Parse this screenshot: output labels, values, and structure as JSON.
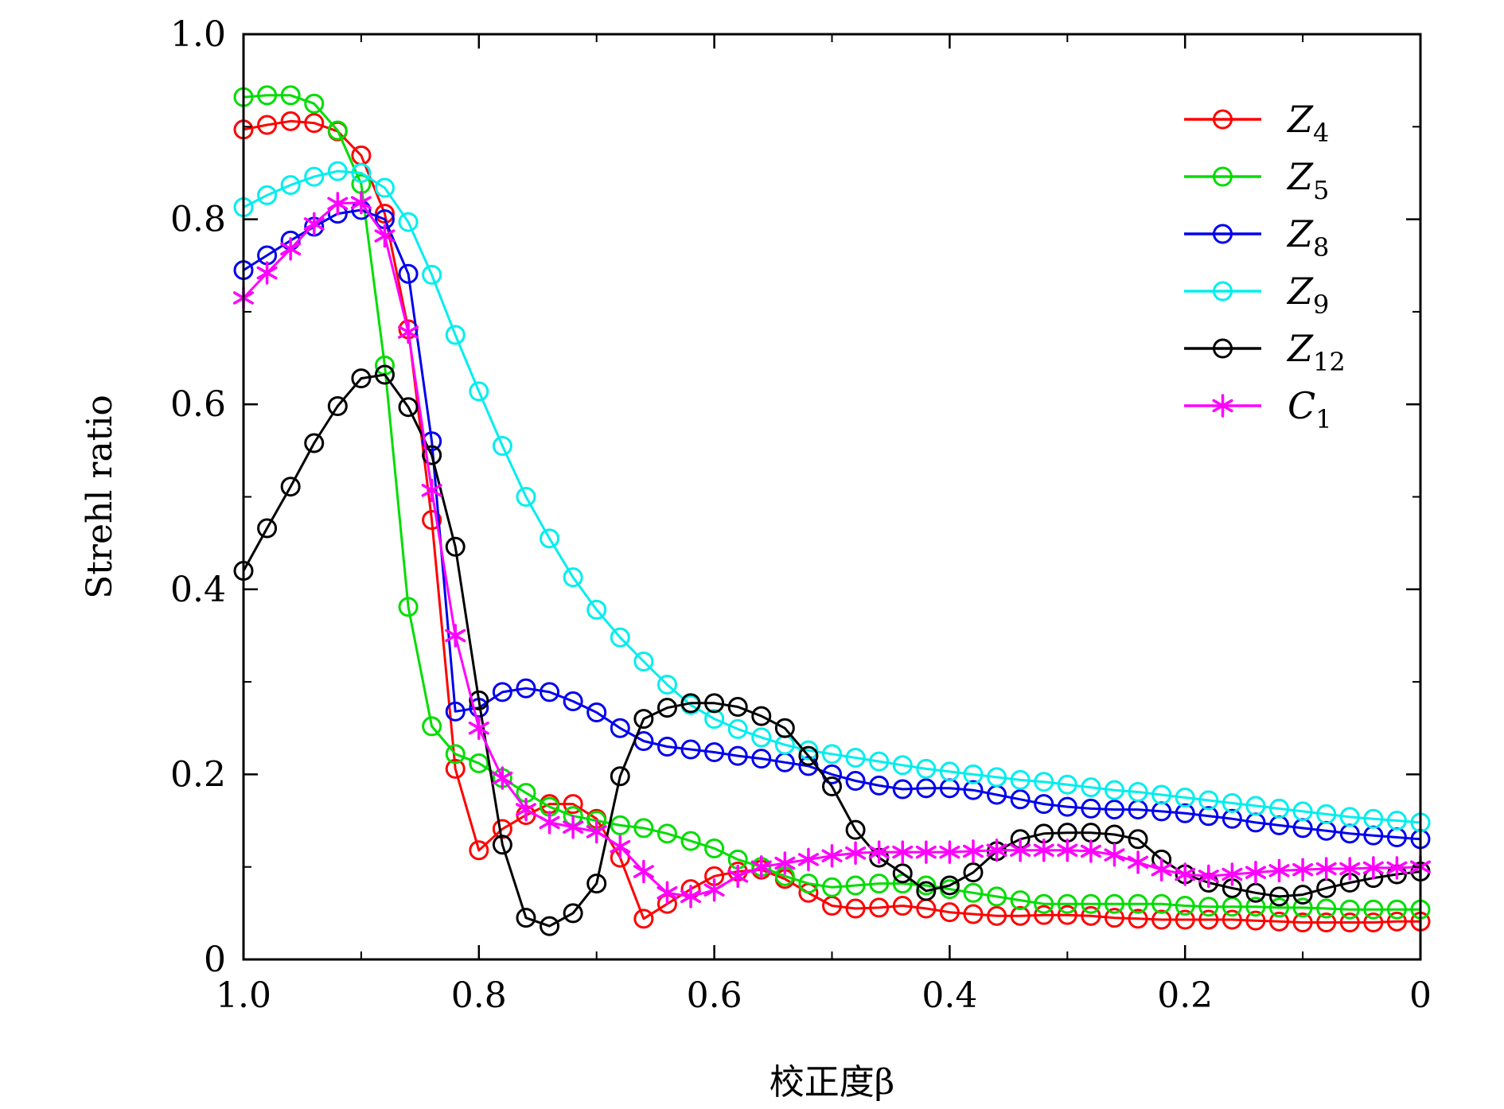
{
  "chart_data": {
    "type": "line",
    "title": "",
    "xlabel": "校正度β",
    "ylabel": "Strehl ratio",
    "xlim": [
      1.0,
      0.0
    ],
    "ylim": [
      0,
      1.0
    ],
    "x_reversed": true,
    "xticks": [
      1.0,
      0.8,
      0.6,
      0.4,
      0.2,
      0
    ],
    "xtick_labels": [
      "1.0",
      "0.8",
      "0.6",
      "0.4",
      "0.2",
      "0"
    ],
    "yticks": [
      0,
      0.2,
      0.4,
      0.6,
      0.8,
      1.0
    ],
    "ytick_labels": [
      "0",
      "0.2",
      "0.4",
      "0.6",
      "0.8",
      "1.0"
    ],
    "grid": false,
    "legend_position": "top-right",
    "x": [
      1.0,
      0.98,
      0.96,
      0.94,
      0.92,
      0.9,
      0.88,
      0.86,
      0.84,
      0.82,
      0.8,
      0.78,
      0.76,
      0.74,
      0.72,
      0.7,
      0.68,
      0.66,
      0.64,
      0.62,
      0.6,
      0.58,
      0.56,
      0.54,
      0.52,
      0.5,
      0.48,
      0.46,
      0.44,
      0.42,
      0.4,
      0.38,
      0.36,
      0.34,
      0.32,
      0.3,
      0.28,
      0.26,
      0.24,
      0.22,
      0.2,
      0.18,
      0.16,
      0.14,
      0.12,
      0.1,
      0.08,
      0.06,
      0.04,
      0.02,
      0.0
    ],
    "series": [
      {
        "name": "Z4",
        "base": "Z",
        "sub": "4",
        "color": "#ff0000",
        "marker": "circle",
        "values": [
          0.897,
          0.902,
          0.906,
          0.904,
          0.895,
          0.869,
          0.806,
          0.681,
          0.475,
          0.206,
          0.118,
          0.141,
          0.156,
          0.168,
          0.168,
          0.152,
          0.11,
          0.044,
          0.06,
          0.076,
          0.09,
          0.095,
          0.097,
          0.087,
          0.072,
          0.058,
          0.055,
          0.056,
          0.058,
          0.055,
          0.051,
          0.049,
          0.047,
          0.047,
          0.048,
          0.048,
          0.047,
          0.045,
          0.044,
          0.043,
          0.043,
          0.043,
          0.043,
          0.042,
          0.041,
          0.04,
          0.04,
          0.04,
          0.04,
          0.041,
          0.041
        ]
      },
      {
        "name": "Z5",
        "base": "Z",
        "sub": "5",
        "color": "#00dd00",
        "marker": "circle",
        "values": [
          0.932,
          0.934,
          0.934,
          0.925,
          0.896,
          0.838,
          0.642,
          0.381,
          0.252,
          0.222,
          0.212,
          0.196,
          0.18,
          0.165,
          0.155,
          0.15,
          0.145,
          0.142,
          0.136,
          0.128,
          0.12,
          0.108,
          0.1,
          0.09,
          0.082,
          0.078,
          0.08,
          0.082,
          0.082,
          0.08,
          0.076,
          0.072,
          0.068,
          0.064,
          0.06,
          0.06,
          0.06,
          0.06,
          0.06,
          0.06,
          0.058,
          0.057,
          0.057,
          0.057,
          0.056,
          0.056,
          0.055,
          0.054,
          0.054,
          0.054,
          0.054
        ]
      },
      {
        "name": "Z8",
        "base": "Z",
        "sub": "8",
        "color": "#0000ee",
        "marker": "circle",
        "values": [
          0.745,
          0.761,
          0.777,
          0.792,
          0.806,
          0.81,
          0.8,
          0.741,
          0.56,
          0.268,
          0.272,
          0.289,
          0.293,
          0.289,
          0.279,
          0.267,
          0.25,
          0.236,
          0.23,
          0.227,
          0.224,
          0.22,
          0.217,
          0.213,
          0.209,
          0.2,
          0.193,
          0.188,
          0.184,
          0.185,
          0.185,
          0.183,
          0.178,
          0.173,
          0.168,
          0.165,
          0.163,
          0.162,
          0.162,
          0.16,
          0.158,
          0.155,
          0.152,
          0.148,
          0.145,
          0.142,
          0.139,
          0.136,
          0.134,
          0.132,
          0.13
        ]
      },
      {
        "name": "Z9",
        "base": "Z",
        "sub": "9",
        "color": "#00eeee",
        "marker": "circle",
        "values": [
          0.813,
          0.826,
          0.837,
          0.846,
          0.852,
          0.85,
          0.834,
          0.797,
          0.74,
          0.675,
          0.614,
          0.555,
          0.5,
          0.455,
          0.413,
          0.378,
          0.348,
          0.322,
          0.297,
          0.275,
          0.26,
          0.249,
          0.24,
          0.232,
          0.226,
          0.222,
          0.218,
          0.214,
          0.21,
          0.206,
          0.203,
          0.2,
          0.197,
          0.194,
          0.192,
          0.189,
          0.186,
          0.183,
          0.181,
          0.178,
          0.175,
          0.172,
          0.169,
          0.166,
          0.163,
          0.16,
          0.157,
          0.154,
          0.152,
          0.15,
          0.148
        ]
      },
      {
        "name": "Z12",
        "base": "Z",
        "sub": "12",
        "color": "#000000",
        "marker": "circle",
        "values": [
          0.42,
          0.466,
          0.511,
          0.558,
          0.598,
          0.628,
          0.632,
          0.597,
          0.545,
          0.446,
          0.28,
          0.124,
          0.045,
          0.036,
          0.05,
          0.082,
          0.198,
          0.26,
          0.272,
          0.277,
          0.277,
          0.273,
          0.263,
          0.25,
          0.22,
          0.187,
          0.14,
          0.11,
          0.093,
          0.074,
          0.08,
          0.094,
          0.117,
          0.13,
          0.136,
          0.137,
          0.137,
          0.135,
          0.13,
          0.108,
          0.092,
          0.083,
          0.077,
          0.072,
          0.068,
          0.07,
          0.077,
          0.083,
          0.088,
          0.092,
          0.095
        ]
      },
      {
        "name": "C1",
        "base": "C",
        "sub": "1",
        "color": "#ff00ff",
        "marker": "asterisk",
        "values": [
          0.715,
          0.742,
          0.768,
          0.795,
          0.817,
          0.818,
          0.782,
          0.678,
          0.507,
          0.35,
          0.25,
          0.196,
          0.162,
          0.148,
          0.143,
          0.138,
          0.122,
          0.095,
          0.072,
          0.068,
          0.075,
          0.09,
          0.1,
          0.104,
          0.108,
          0.112,
          0.115,
          0.116,
          0.116,
          0.116,
          0.116,
          0.117,
          0.118,
          0.118,
          0.118,
          0.118,
          0.117,
          0.113,
          0.105,
          0.097,
          0.092,
          0.09,
          0.092,
          0.094,
          0.096,
          0.097,
          0.098,
          0.098,
          0.099,
          0.099,
          0.1
        ]
      }
    ]
  }
}
